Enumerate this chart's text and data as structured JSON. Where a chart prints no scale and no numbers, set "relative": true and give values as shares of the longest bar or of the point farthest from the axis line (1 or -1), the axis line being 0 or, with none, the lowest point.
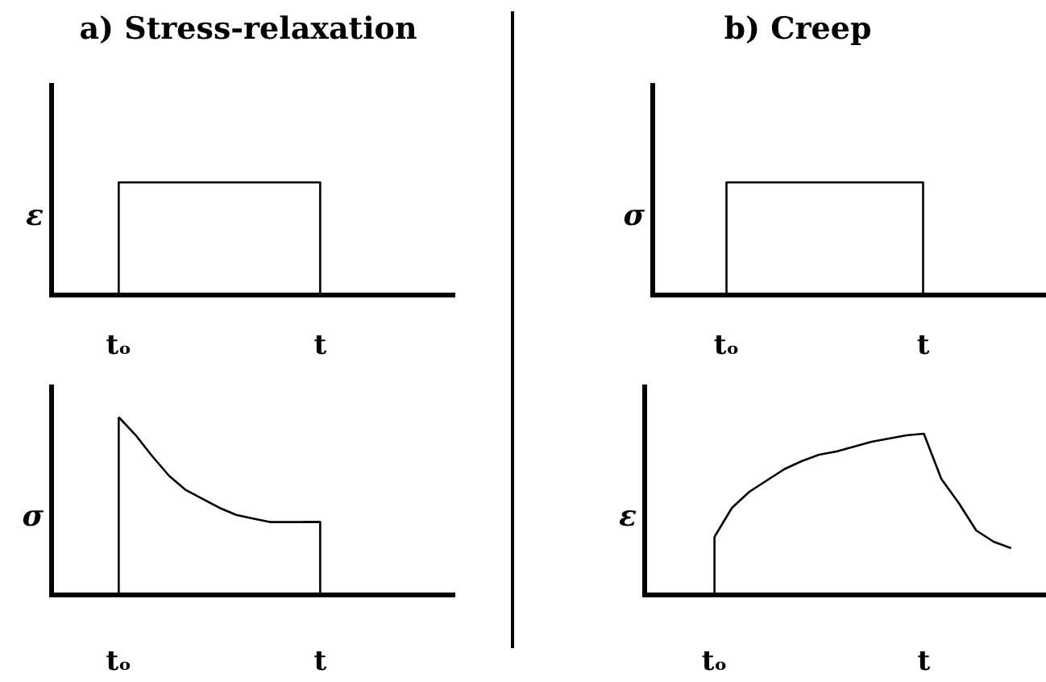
{
  "chart_data": [
    {
      "type": "step",
      "title": "a) Stress-relaxation",
      "ylabel": "ε",
      "relative": true,
      "categories": [
        null,
        "tₒ",
        null,
        null,
        "t",
        null,
        null
      ],
      "values": [
        0,
        1,
        1,
        1,
        0,
        0,
        0
      ],
      "color": "#000000",
      "marker": "none",
      "line_style": "solid"
    },
    {
      "type": "step",
      "title": "b) Creep",
      "ylabel": "σ",
      "relative": true,
      "categories": [
        null,
        null,
        null,
        "tₒ",
        null,
        null,
        null,
        null,
        null,
        null,
        null,
        "t",
        null,
        null,
        null,
        null,
        null
      ],
      "values": [
        0,
        0,
        0,
        1,
        1,
        1,
        1,
        1,
        1,
        1,
        1,
        0,
        0,
        0,
        0,
        0,
        0
      ],
      "color": "#000000",
      "marker": "none",
      "line_style": "solid"
    },
    {
      "type": "line",
      "ylabel": "σ",
      "relative": true,
      "categories": [
        null,
        null,
        null,
        null,
        "tₒ",
        null,
        null,
        null,
        null,
        null,
        null,
        null,
        null,
        null,
        null,
        null,
        "t",
        null,
        null,
        null,
        null,
        null,
        null,
        null,
        null
      ],
      "series": [
        {
          "color": "#000000",
          "values": [
            null,
            null,
            null,
            null,
            1,
            0.9,
            0.78,
            0.67,
            0.59,
            0.54,
            0.49,
            0.45,
            0.43,
            0.41,
            0.41,
            0.41,
            0.41,
            null,
            null,
            null,
            null,
            null,
            null,
            null,
            null
          ]
        },
        {
          "type": "step",
          "color": "#000000",
          "values": [
            null,
            null,
            null,
            0,
            1,
            null,
            null,
            null,
            null,
            null,
            null,
            null,
            null,
            null,
            null,
            0.41,
            0,
            null,
            null,
            null,
            null,
            null,
            null,
            null,
            null
          ]
        }
      ],
      "marker": "none",
      "line_style": "solid"
    },
    {
      "type": "line",
      "ylabel": "ε",
      "relative": true,
      "categories": [
        null,
        null,
        null,
        null,
        "tₒ",
        null,
        null,
        null,
        null,
        null,
        null,
        null,
        null,
        null,
        null,
        null,
        "t",
        null,
        null,
        null,
        null,
        null,
        null,
        null
      ],
      "series": [
        {
          "color": "#000000",
          "values": [
            null,
            null,
            null,
            null,
            0.36,
            0.54,
            0.64,
            0.71,
            0.78,
            0.83,
            0.87,
            0.89,
            0.92,
            0.95,
            0.97,
            0.99,
            1,
            0.72,
            0.57,
            0.4,
            0.33,
            0.29,
            null,
            null
          ]
        },
        {
          "type": "step",
          "color": "#000000",
          "values": [
            null,
            null,
            null,
            0,
            0.36,
            null,
            null,
            null,
            null,
            null,
            null,
            null,
            null,
            null,
            null,
            null,
            null,
            null,
            null,
            null,
            null,
            null,
            null,
            null
          ]
        }
      ],
      "marker": "none",
      "line_style": "solid"
    }
  ]
}
